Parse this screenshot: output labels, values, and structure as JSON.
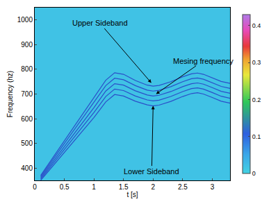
{
  "chart_data": {
    "type": "heatmap",
    "x_label": "t [s]",
    "y_label": "Frequency (hz)",
    "xlim": [
      0,
      3.3
    ],
    "xticks": [
      0,
      0.5,
      1,
      1.5,
      2,
      2.5,
      3
    ],
    "ylim": [
      350,
      1050
    ],
    "yticks": [
      400,
      500,
      600,
      700,
      800,
      900,
      1000
    ],
    "grid": false,
    "cells": {
      "x": [
        0,
        3.3
      ],
      "y": [
        350,
        1050
      ],
      "z": [
        [
          0.02
        ]
      ]
    },
    "colorbar": {
      "range": [
        0,
        0.43
      ],
      "ticks": [
        0,
        0.1,
        0.2,
        0.3,
        0.4
      ]
    },
    "x": [
      0.1,
      0.4,
      0.7,
      1.0,
      1.2,
      1.35,
      1.5,
      1.7,
      1.9,
      2.0,
      2.1,
      2.3,
      2.5,
      2.65,
      2.75,
      2.85,
      3.0,
      3.15,
      3.3
    ],
    "series": [
      {
        "type": "line",
        "color": "#2b4fc9",
        "values": [
          350,
          435,
          520,
          605,
          668,
          698,
          692,
          671,
          656,
          652,
          655,
          670,
          690,
          702,
          705,
          700,
          686,
          671,
          663
        ]
      },
      {
        "type": "line",
        "color": "#2b4fc9",
        "values": [
          355,
          445,
          535,
          625,
          690,
          720,
          714,
          692,
          676,
          672,
          675,
          690,
          710,
          722,
          725,
          720,
          706,
          691,
          683
        ]
      },
      {
        "type": "line",
        "color": "#2b4fc9",
        "values": [
          360,
          455,
          550,
          645,
          712,
          742,
          736,
          713,
          696,
          692,
          695,
          710,
          730,
          742,
          745,
          740,
          726,
          711,
          703
        ]
      },
      {
        "type": "line",
        "color": "#2b4fc9",
        "values": [
          365,
          465,
          565,
          665,
          734,
          764,
          758,
          734,
          716,
          712,
          715,
          730,
          750,
          762,
          765,
          760,
          746,
          731,
          723
        ]
      },
      {
        "type": "line",
        "color": "#2b4fc9",
        "values": [
          370,
          475,
          580,
          685,
          756,
          786,
          780,
          755,
          736,
          732,
          735,
          750,
          770,
          782,
          785,
          780,
          766,
          751,
          743
        ]
      }
    ],
    "annotations": [
      {
        "text": "Upper Sideband",
        "x": 1.97,
        "y": 745
      },
      {
        "text": "Mesing frequency",
        "x": 2.05,
        "y": 700
      },
      {
        "text": "Lower Sideband",
        "x": 2.0,
        "y": 652
      }
    ]
  }
}
